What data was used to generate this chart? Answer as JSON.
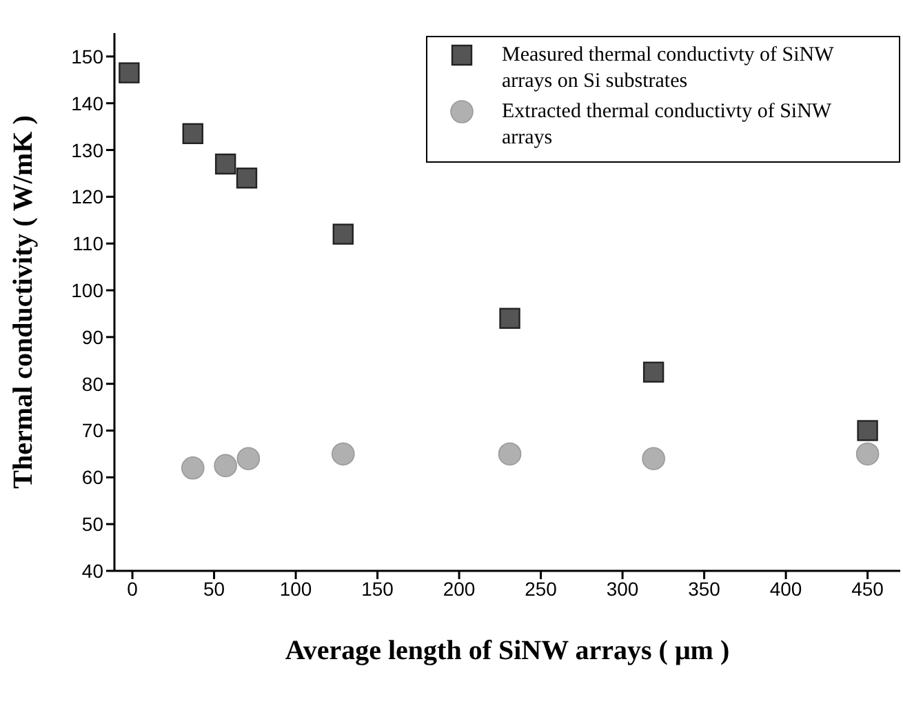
{
  "chart_data": {
    "type": "scatter",
    "xlabel": "Average length of SiNW arrays ( μm )",
    "ylabel": "Thermal conductivity ( W/mK )",
    "xlim": [
      -11,
      470
    ],
    "xticks": [
      0,
      50,
      100,
      150,
      200,
      250,
      300,
      350,
      400,
      450
    ],
    "ylim": [
      40,
      155
    ],
    "yticks": [
      40,
      50,
      60,
      70,
      80,
      90,
      100,
      110,
      120,
      130,
      140,
      150
    ],
    "legend": "top right",
    "grid": false,
    "series": [
      {
        "name": "Measured thermal conductivty of SiNW arrays on Si substrates",
        "color": "#555555",
        "marker": "square",
        "x": [
          -2,
          37,
          57,
          70,
          129,
          231,
          319,
          450
        ],
        "values": [
          146.5,
          133.5,
          127,
          124,
          112,
          94,
          82.5,
          70
        ]
      },
      {
        "name": "Extracted thermal conductivty of SiNW arrays",
        "color": "#b0b0b0",
        "marker": "circle",
        "x": [
          37,
          57,
          71,
          129,
          231,
          319,
          450
        ],
        "values": [
          62,
          62.5,
          64,
          65,
          65,
          64,
          65
        ]
      }
    ]
  }
}
